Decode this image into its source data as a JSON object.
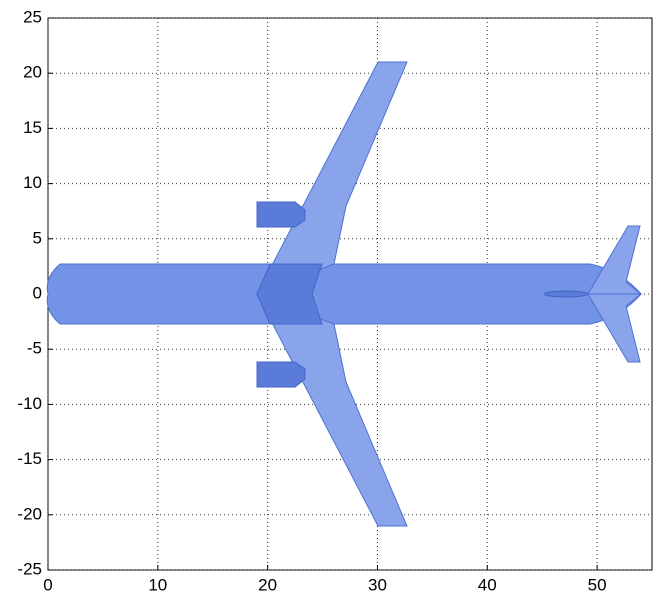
{
  "chart_data": {
    "type": "mesh",
    "xlim": [
      0,
      55
    ],
    "xticks": [
      0,
      10,
      20,
      30,
      40,
      50
    ],
    "ylim": [
      -25,
      25
    ],
    "yticks": [
      -25,
      -20,
      -15,
      -10,
      -5,
      0,
      5,
      10,
      15,
      20,
      25
    ],
    "grid": true
  }
}
